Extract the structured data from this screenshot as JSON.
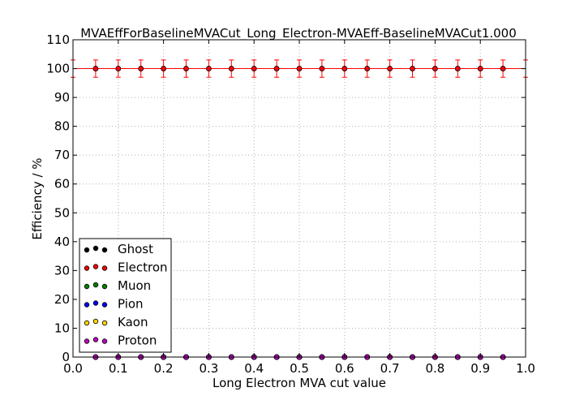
{
  "chart_data": {
    "type": "scatter",
    "title": "MVAEffForBaselineMVACut_Long_Electron-MVAEff-BaselineMVACut1.000",
    "xlabel": "Long Electron MVA cut value",
    "ylabel": "Efficiency / %",
    "xlim": [
      0.0,
      1.0
    ],
    "ylim": [
      0,
      110
    ],
    "xticks": [
      "0.0",
      "0.1",
      "0.2",
      "0.3",
      "0.4",
      "0.5",
      "0.6",
      "0.7",
      "0.8",
      "0.9",
      "1.0"
    ],
    "yticks": [
      "0",
      "10",
      "20",
      "30",
      "40",
      "50",
      "60",
      "70",
      "80",
      "90",
      "100",
      "110"
    ],
    "grid": true,
    "legend_position": "lower-left",
    "x": [
      0.0,
      0.05,
      0.1,
      0.15,
      0.2,
      0.25,
      0.3,
      0.35,
      0.4,
      0.45,
      0.5,
      0.55,
      0.6,
      0.65,
      0.7,
      0.75,
      0.8,
      0.85,
      0.9,
      0.95,
      1.0
    ],
    "series": [
      {
        "name": "Ghost",
        "color": "#000000",
        "values": [
          0,
          0,
          0,
          0,
          0,
          0,
          0,
          0,
          0,
          0,
          0,
          0,
          0,
          0,
          0,
          0,
          0,
          0,
          0,
          0,
          0
        ],
        "yerr": 0
      },
      {
        "name": "Electron",
        "color": "#ff0000",
        "values": [
          100,
          100,
          100,
          100,
          100,
          100,
          100,
          100,
          100,
          100,
          100,
          100,
          100,
          100,
          100,
          100,
          100,
          100,
          100,
          100,
          100
        ],
        "yerr": 3
      },
      {
        "name": "Muon",
        "color": "#008000",
        "values": [
          0,
          0,
          0,
          0,
          0,
          0,
          0,
          0,
          0,
          0,
          0,
          0,
          0,
          0,
          0,
          0,
          0,
          0,
          0,
          0,
          0
        ],
        "yerr": 0
      },
      {
        "name": "Pion",
        "color": "#0000ff",
        "values": [
          0,
          0,
          0,
          0,
          0,
          0,
          0,
          0,
          0,
          0,
          0,
          0,
          0,
          0,
          0,
          0,
          0,
          0,
          0,
          0,
          0
        ],
        "yerr": 0
      },
      {
        "name": "Kaon",
        "color": "#ffd700",
        "values": [
          0,
          0,
          0,
          0,
          0,
          0,
          0,
          0,
          0,
          0,
          0,
          0,
          0,
          0,
          0,
          0,
          0,
          0,
          0,
          0,
          0
        ],
        "yerr": 0
      },
      {
        "name": "Proton",
        "color": "#c000c0",
        "values": [
          0,
          0,
          0,
          0,
          0,
          0,
          0,
          0,
          0,
          0,
          0,
          0,
          0,
          0,
          0,
          0,
          0,
          0,
          0,
          0,
          0
        ],
        "yerr": 0
      }
    ]
  }
}
